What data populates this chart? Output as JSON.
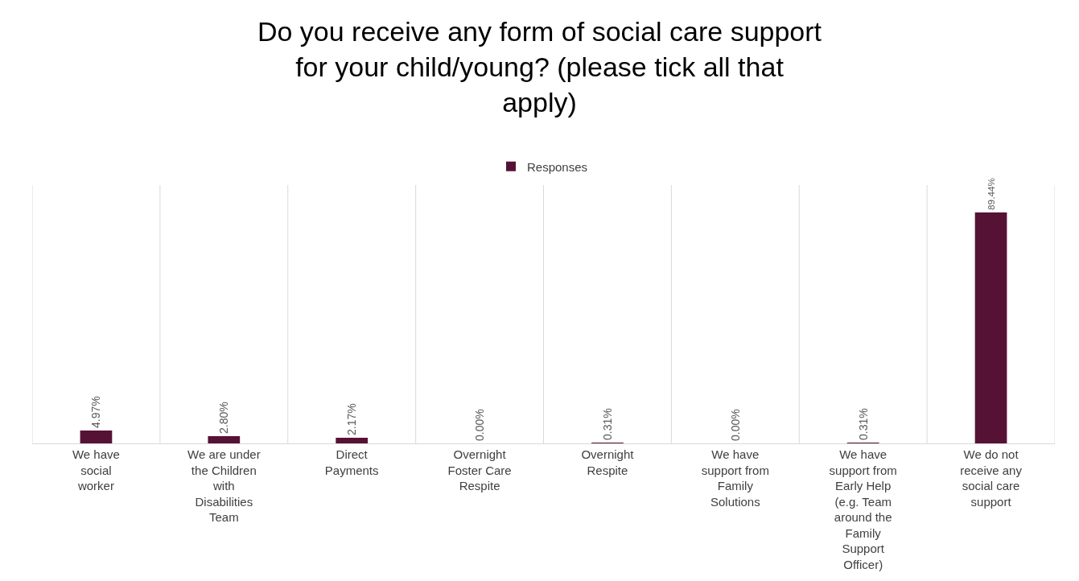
{
  "chart_data": {
    "type": "bar",
    "title": "Do you receive any form of social care support for your child/young? (please tick all that apply)",
    "categories": [
      "We have social worker",
      "We are under the Children with Disabilities Team",
      "Direct Payments",
      "Overnight Foster Care Respite",
      "Overnight Respite",
      "We have support from Family Solutions",
      "We have support from Early Help (e.g. Team around the Family Support Officer)",
      "We do not receive any social care support"
    ],
    "series": [
      {
        "name": "Responses",
        "color": "#561235",
        "values": [
          4.97,
          2.8,
          2.17,
          0.0,
          0.31,
          0.0,
          0.31,
          89.44
        ],
        "value_labels": [
          "4.97%",
          "2.80%",
          "2.17%",
          "0.00%",
          "0.31%",
          "0.00%",
          "0.31%",
          "89.44%"
        ]
      }
    ],
    "ylim": [
      0,
      100
    ],
    "grid": "x",
    "legend": "top",
    "tick_labels": "x"
  }
}
